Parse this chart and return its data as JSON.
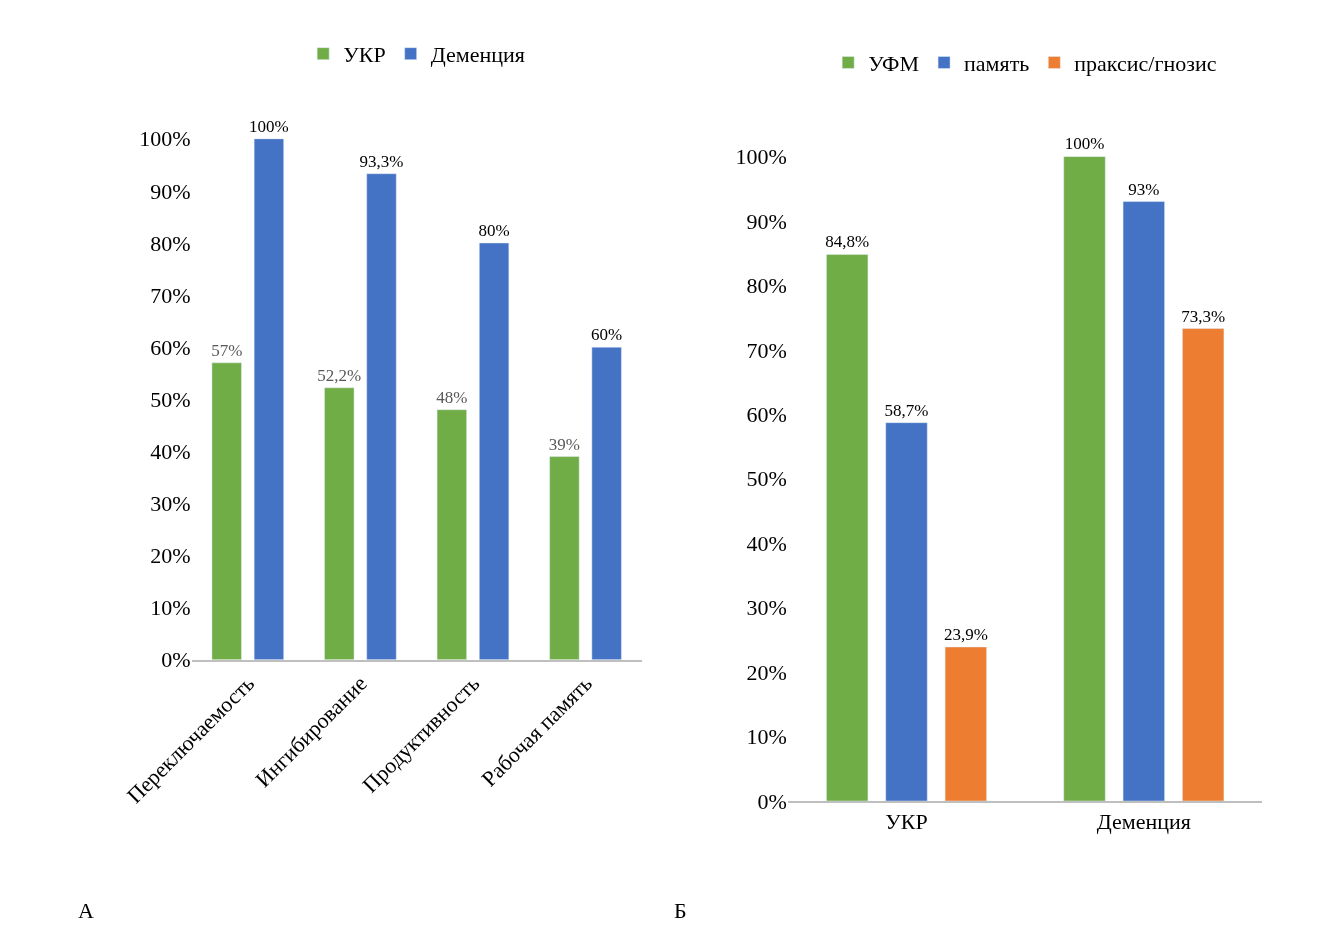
{
  "chart_data": [
    {
      "type": "bar",
      "categories": [
        "Переключаемость",
        "Ингибирование",
        "Продуктивность",
        "Рабочая память"
      ],
      "series": [
        {
          "name": "УКР",
          "color": "#70ad47",
          "values": [
            57,
            52.2,
            48,
            39
          ],
          "value_labels": [
            "57%",
            "52,2%",
            "48%",
            "39%"
          ]
        },
        {
          "name": "Деменция",
          "color": "#4472c4",
          "values": [
            100,
            93.3,
            80,
            60
          ],
          "value_labels": [
            "100%",
            "93,3%",
            "80%",
            "60%"
          ]
        }
      ],
      "ylim": [
        0,
        100
      ],
      "yticks": [
        {
          "value": 0,
          "label": "0%"
        },
        {
          "value": 10,
          "label": "10%"
        },
        {
          "value": 20,
          "label": "20%"
        },
        {
          "value": 30,
          "label": "30%"
        },
        {
          "value": 40,
          "label": "40%"
        },
        {
          "value": 50,
          "label": "50%"
        },
        {
          "value": 60,
          "label": "60%"
        },
        {
          "value": 70,
          "label": "70%"
        },
        {
          "value": 80,
          "label": "80%"
        },
        {
          "value": 90,
          "label": "90%"
        },
        {
          "value": 100,
          "label": "100%"
        }
      ],
      "legend": "top",
      "annotations": [
        "А"
      ]
    },
    {
      "type": "bar",
      "categories": [
        "УКР",
        "Деменция"
      ],
      "series": [
        {
          "name": "УФМ",
          "color": "#70ad47",
          "values": [
            84.8,
            100
          ],
          "value_labels": [
            "84,8%",
            "100%"
          ]
        },
        {
          "name": "память",
          "color": "#4472c4",
          "values": [
            58.7,
            93
          ],
          "value_labels": [
            "58,7%",
            "93%"
          ]
        },
        {
          "name": "праксис/гнозис",
          "color": "#ed7d31",
          "values": [
            23.9,
            73.3
          ],
          "value_labels": [
            "23,9%",
            "73,3%"
          ]
        }
      ],
      "ylim": [
        0,
        100
      ],
      "yticks": [
        {
          "value": 0,
          "label": "0%"
        },
        {
          "value": 10,
          "label": "10%"
        },
        {
          "value": 20,
          "label": "20%"
        },
        {
          "value": 30,
          "label": "30%"
        },
        {
          "value": 40,
          "label": "40%"
        },
        {
          "value": 50,
          "label": "50%"
        },
        {
          "value": 60,
          "label": "60%"
        },
        {
          "value": 70,
          "label": "70%"
        },
        {
          "value": 80,
          "label": "80%"
        },
        {
          "value": 90,
          "label": "90%"
        },
        {
          "value": 100,
          "label": "100%"
        }
      ],
      "legend": "top",
      "annotations": [
        "Б"
      ]
    }
  ]
}
